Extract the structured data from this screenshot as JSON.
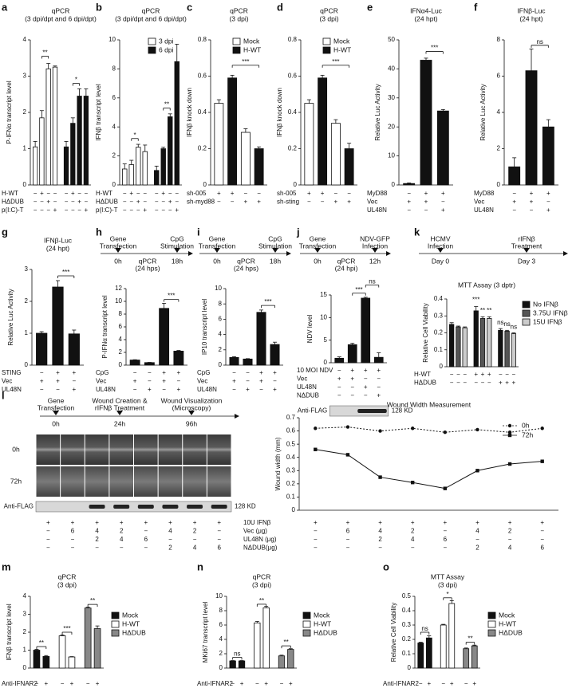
{
  "chart_data": [
    {
      "type": "bar",
      "panel": "a",
      "title": [
        "qPCR",
        "(3 dpi/dpt and 6 dpi/dpt)"
      ],
      "y_label": "P-IFNα transcript level",
      "ylim": [
        0,
        4
      ],
      "yticks": [
        0,
        1,
        2,
        3,
        4
      ],
      "values": [
        1.05,
        1.85,
        3.2,
        3.25,
        1.05,
        1.7,
        2.45,
        2.45
      ],
      "errors": [
        0.15,
        0.2,
        0.15,
        0.03,
        0.15,
        0.15,
        0.2,
        0.2
      ],
      "colors": [
        "#ffffff",
        "#ffffff",
        "#ffffff",
        "#ffffff",
        "#111111",
        "#111111",
        "#111111",
        "#111111"
      ],
      "conditions": [
        {
          "label": "H-WT",
          "marks": [
            "−",
            "+",
            "−",
            "−",
            "−",
            "+",
            "−",
            "−"
          ]
        },
        {
          "label": "HΔDUB",
          "marks": [
            "−",
            "−",
            "+",
            "−",
            "−",
            "−",
            "+",
            "−"
          ]
        },
        {
          "label": "p(I:C)-T",
          "marks": [
            "−",
            "−",
            "−",
            "+",
            "−",
            "−",
            "−",
            "+"
          ]
        }
      ],
      "annotations": [
        "**",
        "*"
      ]
    },
    {
      "type": "bar",
      "panel": "b",
      "title": [
        "qPCR",
        "(3 dpi/dpt and 6 dpi/dpt)"
      ],
      "y_label": "IFNβ transcript level",
      "ylim": [
        0,
        10
      ],
      "yticks": [
        0,
        2,
        4,
        6,
        8,
        10
      ],
      "values": [
        1.1,
        1.4,
        2.6,
        2.3,
        1.0,
        2.5,
        4.7,
        8.5
      ],
      "errors": [
        0.35,
        0.3,
        0.2,
        0.45,
        0.3,
        0.1,
        0.2,
        1.2
      ],
      "colors": [
        "#ffffff",
        "#ffffff",
        "#ffffff",
        "#ffffff",
        "#111111",
        "#111111",
        "#111111",
        "#111111"
      ],
      "legend": [
        {
          "name": "3 dpi",
          "color": "#ffffff"
        },
        {
          "name": "6 dpi",
          "color": "#111111"
        }
      ],
      "conditions": [
        {
          "label": "H-WT",
          "marks": [
            "−",
            "+",
            "−",
            "−",
            "−",
            "+",
            "−",
            "−"
          ]
        },
        {
          "label": "HΔDUB",
          "marks": [
            "−",
            "−",
            "+",
            "−",
            "−",
            "−",
            "+",
            "−"
          ]
        },
        {
          "label": "p(I:C)-T",
          "marks": [
            "−",
            "−",
            "−",
            "+",
            "−",
            "−",
            "−",
            "+"
          ]
        }
      ],
      "annotations": [
        "*",
        "**"
      ]
    },
    {
      "type": "bar",
      "panel": "c",
      "title": [
        "qPCR",
        "(3 dpi)"
      ],
      "y_label": "IFNβ knock down",
      "ylim": [
        0,
        0.8
      ],
      "yticks": [
        0,
        0.2,
        0.4,
        0.6,
        0.8
      ],
      "values": [
        0.45,
        0.59,
        0.29,
        0.2
      ],
      "errors": [
        0.02,
        0.015,
        0.02,
        0.01
      ],
      "colors": [
        "#ffffff",
        "#111111",
        "#ffffff",
        "#111111"
      ],
      "legend": [
        {
          "name": "Mock",
          "color": "#ffffff"
        },
        {
          "name": "H-WT",
          "color": "#111111"
        }
      ],
      "conditions": [
        {
          "label": "sh-005",
          "marks": [
            "+",
            "+",
            "−",
            "−"
          ]
        },
        {
          "label": "sh-myd88",
          "marks": [
            "−",
            "−",
            "+",
            "+"
          ]
        }
      ],
      "annotations": [
        "***"
      ]
    },
    {
      "type": "bar",
      "panel": "d",
      "title": [
        "qPCR",
        "(3 dpi)"
      ],
      "y_label": "IFNβ knock down",
      "ylim": [
        0,
        0.8
      ],
      "yticks": [
        0,
        0.2,
        0.4,
        0.6,
        0.8
      ],
      "values": [
        0.45,
        0.59,
        0.34,
        0.2
      ],
      "errors": [
        0.02,
        0.015,
        0.02,
        0.03
      ],
      "colors": [
        "#ffffff",
        "#111111",
        "#ffffff",
        "#111111"
      ],
      "legend": [
        {
          "name": "Mock",
          "color": "#ffffff"
        },
        {
          "name": "H-WT",
          "color": "#111111"
        }
      ],
      "conditions": [
        {
          "label": "sh-005",
          "marks": [
            "+",
            "+",
            "−",
            "−"
          ]
        },
        {
          "label": "sh-sting",
          "marks": [
            "−",
            "−",
            "+",
            "+"
          ]
        }
      ],
      "annotations": [
        "***"
      ]
    },
    {
      "type": "bar",
      "panel": "e",
      "title": [
        "IFNα4-Luc",
        "(24 hpt)"
      ],
      "y_label": "Relative Luc Activity",
      "ylim": [
        0,
        50
      ],
      "yticks": [
        0,
        10,
        20,
        30,
        40,
        50
      ],
      "values": [
        0.5,
        43,
        25.5
      ],
      "errors": [
        0.2,
        0.7,
        0.5
      ],
      "colors": [
        "#111111",
        "#111111",
        "#111111"
      ],
      "conditions": [
        {
          "label": "MyD88",
          "marks": [
            "−",
            "+",
            "+"
          ]
        },
        {
          "label": "Vec",
          "marks": [
            "+",
            "+",
            "−"
          ]
        },
        {
          "label": "UL48N",
          "marks": [
            "−",
            "−",
            "+"
          ]
        }
      ],
      "annotations": [
        "***"
      ]
    },
    {
      "type": "bar",
      "panel": "f",
      "title": [
        "IFNβ-Luc",
        "(24 hpt)"
      ],
      "y_label": "Relative Luc Activity",
      "ylim": [
        0,
        8
      ],
      "yticks": [
        0,
        2,
        4,
        6,
        8
      ],
      "values": [
        1.0,
        6.3,
        3.2
      ],
      "errors": [
        0.5,
        1.2,
        0.4
      ],
      "colors": [
        "#111111",
        "#111111",
        "#111111"
      ],
      "conditions": [
        {
          "label": "MyD88",
          "marks": [
            "−",
            "+",
            "+"
          ]
        },
        {
          "label": "Vec",
          "marks": [
            "+",
            "+",
            "−"
          ]
        },
        {
          "label": "UL48N",
          "marks": [
            "−",
            "−",
            "+"
          ]
        }
      ],
      "annotations": [
        "ns"
      ]
    },
    {
      "type": "bar",
      "panel": "g",
      "title": [
        "IFNβ-Luc",
        "(24 hpt)"
      ],
      "y_label": "Relative Luc Activity",
      "ylim": [
        0,
        3
      ],
      "yticks": [
        0,
        1,
        2,
        3
      ],
      "values": [
        1.0,
        2.45,
        0.98
      ],
      "errors": [
        0.05,
        0.2,
        0.12
      ],
      "colors": [
        "#111111",
        "#111111",
        "#111111"
      ],
      "conditions": [
        {
          "label": "STING",
          "marks": [
            "−",
            "+",
            "+"
          ]
        },
        {
          "label": "Vec",
          "marks": [
            "+",
            "+",
            "−"
          ]
        },
        {
          "label": "UL48N",
          "marks": [
            "−",
            "−",
            "+"
          ]
        }
      ],
      "annotations": [
        "***"
      ]
    },
    {
      "type": "bar",
      "panel": "h",
      "timeline": [
        "Gene",
        "Transfection",
        "CpG",
        "Stimulation",
        "0h",
        "qPCR",
        "(24 hps)",
        "18h"
      ],
      "y_label": "P-IFNα transcript  level",
      "ylim": [
        0,
        12
      ],
      "yticks": [
        0,
        2,
        4,
        6,
        8,
        10,
        12
      ],
      "values": [
        0.8,
        0.4,
        8.9,
        2.2
      ],
      "errors": [
        0.05,
        0.03,
        0.8,
        0.1
      ],
      "colors": [
        "#111111",
        "#111111",
        "#111111",
        "#111111"
      ],
      "conditions": [
        {
          "label": "CpG",
          "marks": [
            "−",
            "−",
            "+",
            "+"
          ]
        },
        {
          "label": "Vec",
          "marks": [
            "+",
            "−",
            "+",
            "−"
          ]
        },
        {
          "label": "UL48N",
          "marks": [
            "−",
            "+",
            "−",
            "+"
          ]
        }
      ],
      "annotations": [
        "***"
      ]
    },
    {
      "type": "bar",
      "panel": "i",
      "timeline": [
        "Gene",
        "Transfection",
        "CpG",
        "Stimulation",
        "0h",
        "qPCR",
        "(24 hps)",
        "18h"
      ],
      "y_label": "IP10 transcript level",
      "ylim": [
        0,
        10
      ],
      "yticks": [
        0,
        2,
        4,
        6,
        8,
        10
      ],
      "values": [
        1.0,
        0.8,
        6.9,
        2.7
      ],
      "errors": [
        0.1,
        0.05,
        0.3,
        0.3
      ],
      "colors": [
        "#111111",
        "#111111",
        "#111111",
        "#111111"
      ],
      "conditions": [
        {
          "label": "CpG",
          "marks": [
            "−",
            "−",
            "+",
            "+"
          ]
        },
        {
          "label": "Vec",
          "marks": [
            "+",
            "−",
            "+",
            "−"
          ]
        },
        {
          "label": "UL48N",
          "marks": [
            "−",
            "+",
            "−",
            "+"
          ]
        }
      ],
      "annotations": [
        "***"
      ]
    },
    {
      "type": "bar",
      "panel": "j",
      "timeline": [
        "Gene",
        "Transfection",
        "NDV-GFP",
        "Infection",
        "0h",
        "qPCR",
        "(24 hpi)",
        "12h"
      ],
      "y_label": "NDV level",
      "ylim": [
        0,
        15
      ],
      "yticks": [
        0,
        5,
        10,
        15
      ],
      "values": [
        1.0,
        4.0,
        14.3,
        1.2
      ],
      "errors": [
        0.3,
        0.3,
        0.2,
        1.0
      ],
      "colors": [
        "#111111",
        "#111111",
        "#111111",
        "#111111"
      ],
      "conditions": [
        {
          "label": "10 MOI NDV",
          "marks": [
            "−",
            "+",
            "+",
            "+"
          ]
        },
        {
          "label": "Vec",
          "marks": [
            "+",
            "+",
            "−",
            "−"
          ]
        },
        {
          "label": "UL48N",
          "marks": [
            "−",
            "−",
            "+",
            "−"
          ]
        },
        {
          "label": "NΔDUB",
          "marks": [
            "−",
            "−",
            "−",
            "+"
          ]
        }
      ],
      "annotations": [
        "ns",
        "***"
      ],
      "blot": {
        "label": "Anti-FLAG",
        "size": "128 KD"
      }
    },
    {
      "type": "bar",
      "panel": "k",
      "timeline": [
        "HCMV",
        "Infection",
        "rIFNβ",
        "Treatment",
        "Day 0",
        "Day 3"
      ],
      "title": [
        "MTT Assay (3 dptr)"
      ],
      "y_label": "Relative  Cell Viability",
      "ylim": [
        0,
        0.4
      ],
      "yticks": [
        0,
        0.1,
        0.2,
        0.3,
        0.4
      ],
      "values": [
        0.25,
        0.235,
        0.23,
        0.33,
        0.285,
        0.285,
        0.215,
        0.21,
        0.195
      ],
      "errors": [
        0.01,
        0.005,
        0.005,
        0.025,
        0.01,
        0.01,
        0.01,
        0.005,
        0.005
      ],
      "colors": [
        "#111111",
        "#555555",
        "#cccccc",
        "#111111",
        "#555555",
        "#cccccc",
        "#111111",
        "#555555",
        "#cccccc"
      ],
      "legend": [
        {
          "name": "No IFNβ",
          "color": "#111111"
        },
        {
          "name": "3.75U IFNβ",
          "color": "#555555"
        },
        {
          "name": "15U IFNβ",
          "color": "#cccccc"
        }
      ],
      "conditions": [
        {
          "label": "H-WT",
          "marks": [
            "−",
            "−",
            "−",
            "+",
            "+",
            "+",
            "−",
            "−",
            "−"
          ]
        },
        {
          "label": "HΔDUB",
          "marks": [
            "−",
            "−",
            "−",
            "−",
            "−",
            "−",
            "+",
            "+",
            "+"
          ]
        }
      ],
      "annotations": [
        "***",
        "**",
        "**",
        "ns",
        "ns",
        "ns"
      ]
    },
    {
      "type": "line",
      "panel": "l",
      "timeline": [
        "Gene",
        "Transfection",
        "Wound Creation &",
        "rIFNβ  Treatment",
        "Wound Visualization",
        "(Microscopy)",
        "0h",
        "24h",
        "96h"
      ],
      "image_rows": [
        "0h",
        "72h"
      ],
      "blot": {
        "label": "Anti-FLAG",
        "size": "128 KD"
      },
      "title": "Wound Width Measurement",
      "y_label": "Wound width (mm)",
      "ylim": [
        0,
        0.7
      ],
      "yticks": [
        0,
        0.1,
        0.2,
        0.3,
        0.4,
        0.5,
        0.6,
        0.7
      ],
      "series": [
        {
          "name": "0h",
          "color": "#111111",
          "values": [
            0.62,
            0.63,
            0.6,
            0.62,
            0.59,
            0.61,
            0.59,
            0.62
          ]
        },
        {
          "name": "72h",
          "color": "#111111",
          "values": [
            0.46,
            0.42,
            0.25,
            0.21,
            0.165,
            0.3,
            0.35,
            0.37
          ]
        }
      ],
      "conditions": [
        {
          "label": "10U IFNβ",
          "marks": [
            "+",
            "+",
            "+",
            "+",
            "+",
            "+",
            "+",
            "+"
          ]
        },
        {
          "label": "Vec (μg)",
          "marks": [
            "−",
            "6",
            "4",
            "2",
            "−",
            "4",
            "2",
            "−"
          ]
        },
        {
          "label": "UL48N (μg)",
          "marks": [
            "−",
            "−",
            "2",
            "4",
            "6",
            "−",
            "−",
            "−"
          ]
        },
        {
          "label": "NΔDUB(μg)",
          "marks": [
            "−",
            "−",
            "−",
            "−",
            "−",
            "2",
            "4",
            "6"
          ]
        }
      ]
    },
    {
      "type": "bar",
      "panel": "m",
      "title": [
        "qPCR",
        "(3 dpi)"
      ],
      "y_label": "IFNβ transcript level",
      "ylim": [
        0,
        4
      ],
      "yticks": [
        0,
        1,
        2,
        3,
        4
      ],
      "values": [
        1.0,
        0.65,
        1.8,
        0.62,
        3.35,
        2.2
      ],
      "errors": [
        0.05,
        0.05,
        0.05,
        0.02,
        0.05,
        0.15
      ],
      "colors": [
        "#111111",
        "#111111",
        "#ffffff",
        "#ffffff",
        "#888888",
        "#888888"
      ],
      "legend": [
        {
          "name": "Mock",
          "color": "#111111"
        },
        {
          "name": "H-WT",
          "color": "#ffffff"
        },
        {
          "name": "HΔDUB",
          "color": "#888888"
        }
      ],
      "conditions": [
        {
          "label": "Anti-IFNAR2",
          "marks": [
            "−",
            "+",
            "−",
            "+",
            "−",
            "+"
          ]
        }
      ],
      "annotations": [
        "**",
        "***",
        "**"
      ]
    },
    {
      "type": "bar",
      "panel": "n",
      "title": [
        "qPCR",
        "(3 dpi)"
      ],
      "y_label": "MKi67 transcript level",
      "ylim": [
        0,
        10
      ],
      "yticks": [
        0,
        2,
        4,
        6,
        8,
        10
      ],
      "values": [
        1.0,
        1.0,
        6.3,
        8.4,
        1.7,
        2.6
      ],
      "errors": [
        0.05,
        0.05,
        0.2,
        0.2,
        0.1,
        0.1
      ],
      "colors": [
        "#111111",
        "#111111",
        "#ffffff",
        "#ffffff",
        "#888888",
        "#888888"
      ],
      "legend": [
        {
          "name": "Mock",
          "color": "#111111"
        },
        {
          "name": "H-WT",
          "color": "#ffffff"
        },
        {
          "name": "HΔDUB",
          "color": "#888888"
        }
      ],
      "conditions": [
        {
          "label": "Anti-IFNAR2",
          "marks": [
            "−",
            "+",
            "−",
            "+",
            "−",
            "+"
          ]
        }
      ],
      "annotations": [
        "ns",
        "**",
        "**"
      ]
    },
    {
      "type": "bar",
      "panel": "o",
      "title": [
        "MTT Assay",
        "(3 dpi)"
      ],
      "y_label": "Relative  Cell Viability",
      "ylim": [
        0,
        0.5
      ],
      "yticks": [
        0,
        0.1,
        0.2,
        0.3,
        0.4,
        0.5
      ],
      "values": [
        0.175,
        0.21,
        0.3,
        0.45,
        0.135,
        0.155
      ],
      "errors": [
        0.005,
        0.015,
        0.005,
        0.02,
        0.005,
        0.005
      ],
      "colors": [
        "#111111",
        "#111111",
        "#ffffff",
        "#ffffff",
        "#888888",
        "#888888"
      ],
      "legend": [
        {
          "name": "Mock",
          "color": "#111111"
        },
        {
          "name": "H-WT",
          "color": "#ffffff"
        },
        {
          "name": "HΔDUB",
          "color": "#888888"
        }
      ],
      "conditions": [
        {
          "label": "Anti-IFNAR2",
          "marks": [
            "−",
            "+",
            "−",
            "+",
            "−",
            "+"
          ]
        }
      ],
      "annotations": [
        "ns",
        "*",
        "**"
      ]
    }
  ]
}
